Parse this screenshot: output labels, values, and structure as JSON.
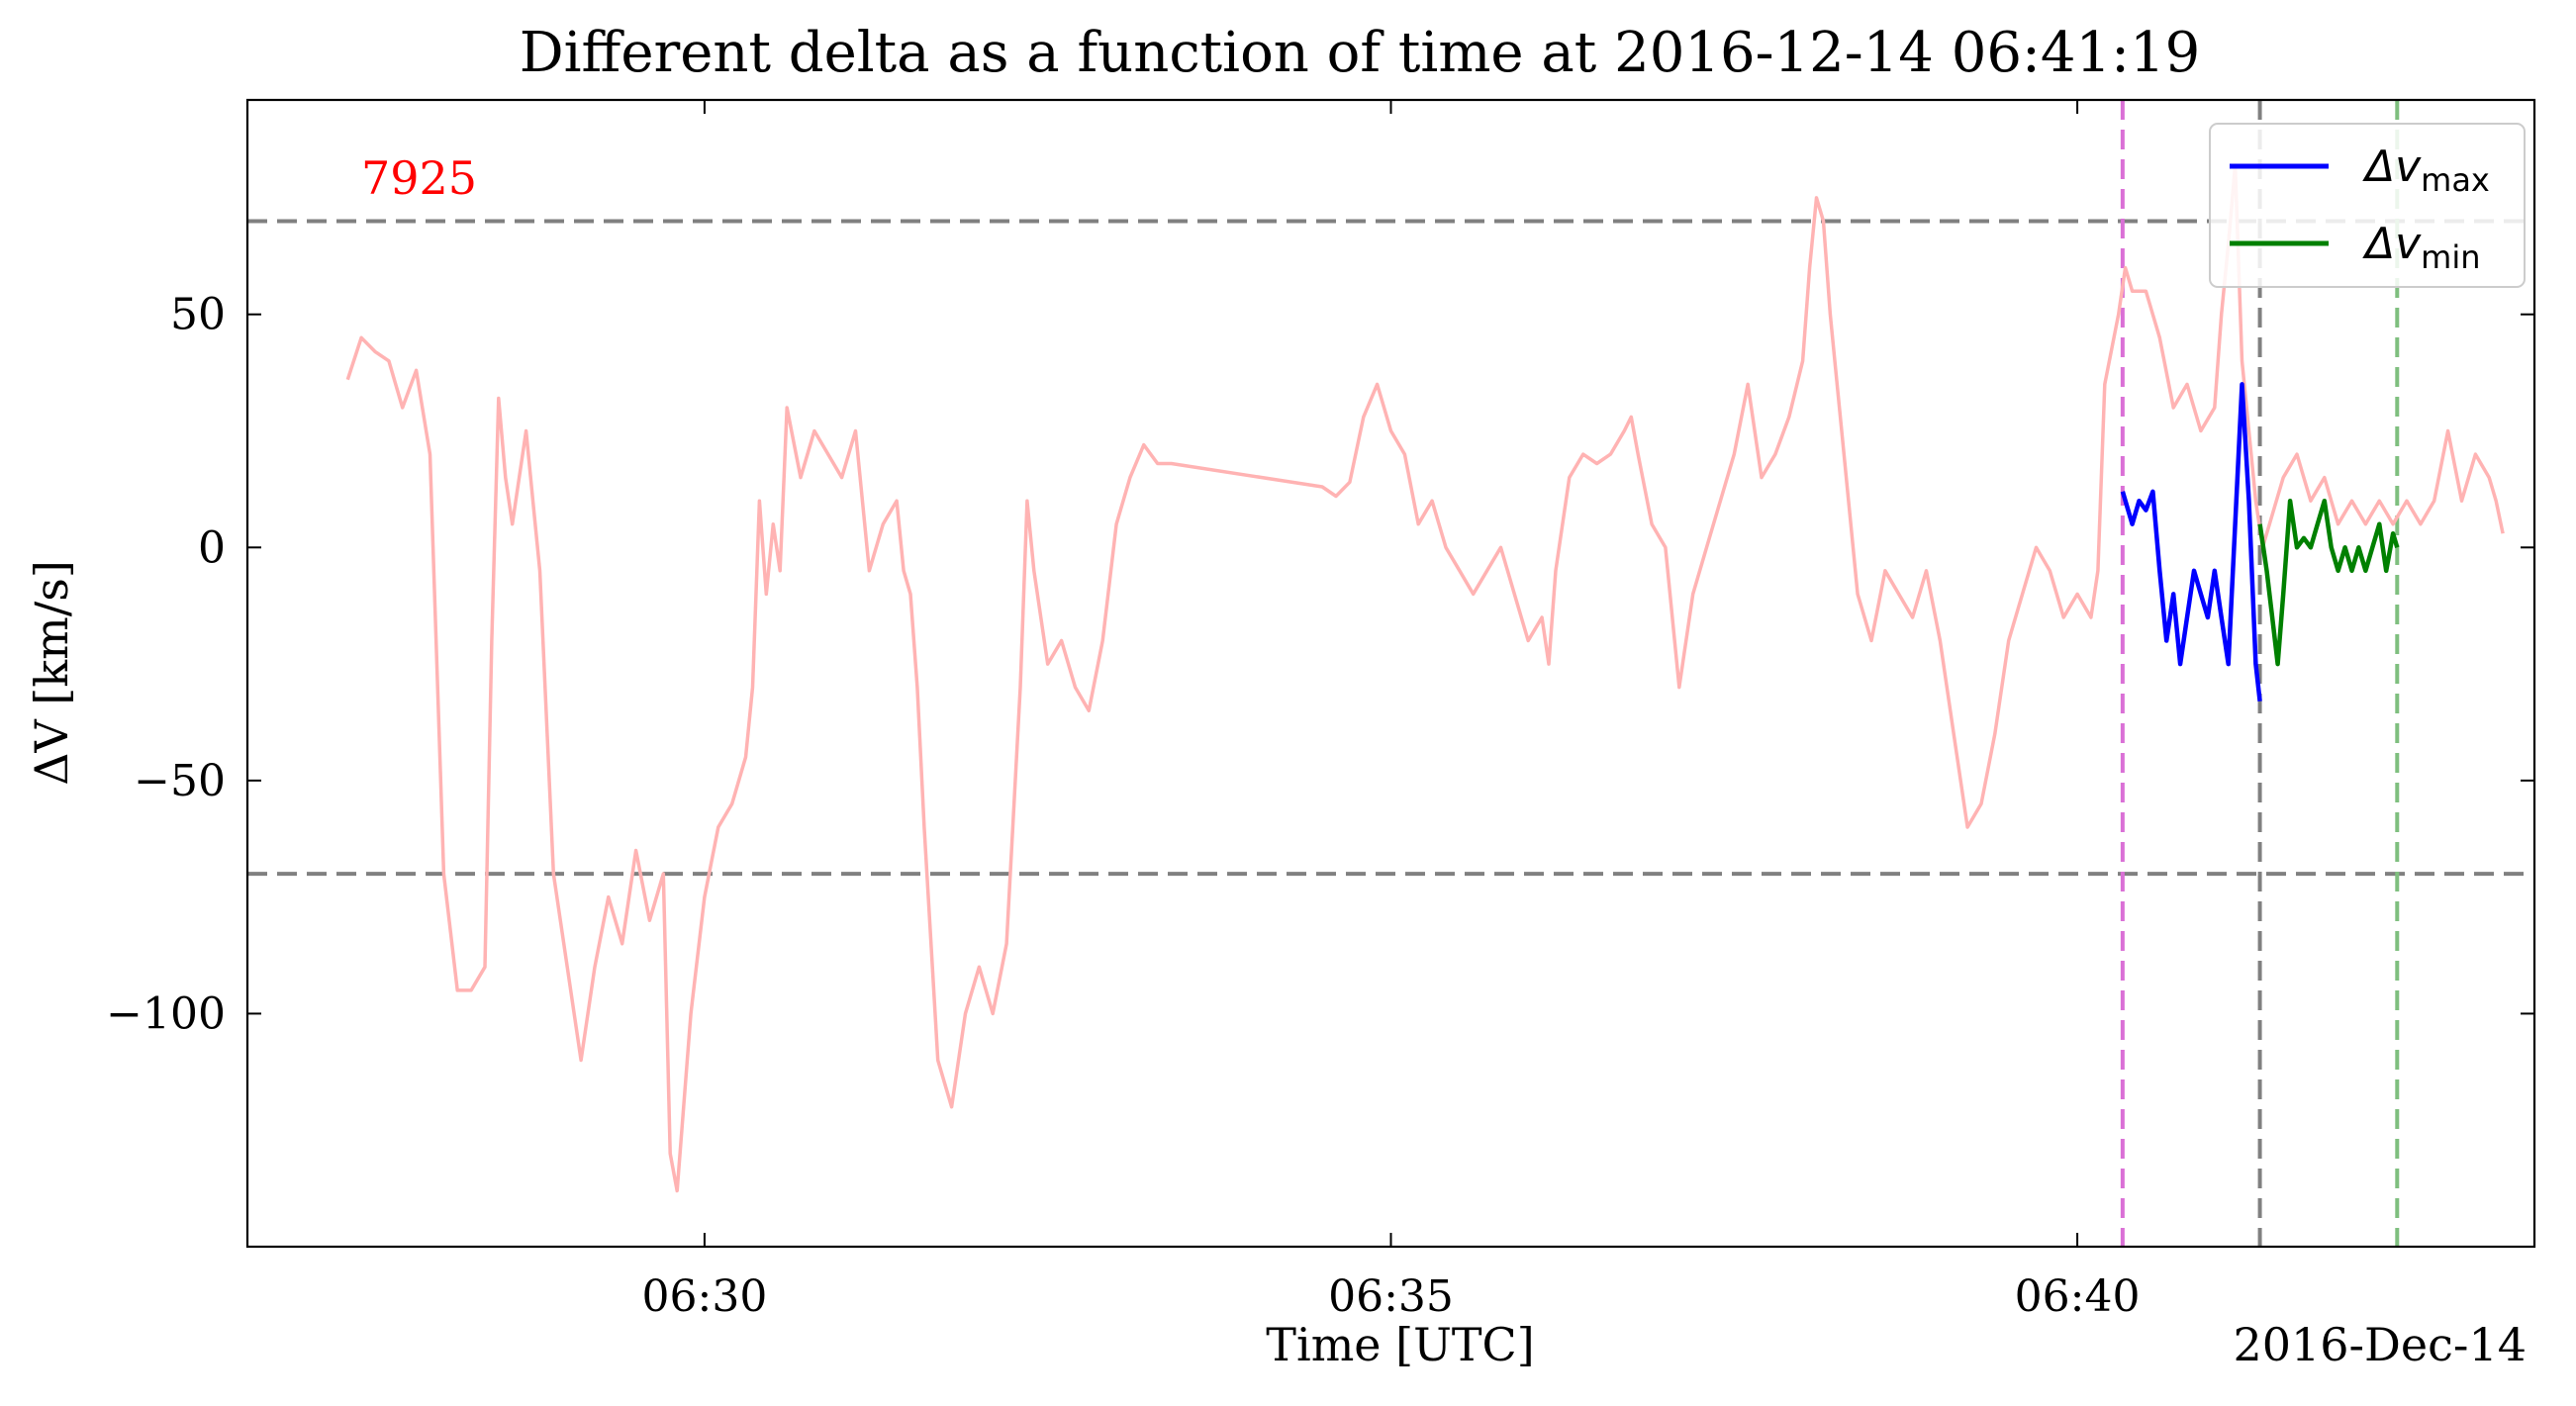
{
  "chart_data": {
    "type": "line",
    "title": "Different delta as a function of time at 2016-12-14 06:41:19",
    "xlabel": "Time [UTC]",
    "ylabel": "ΔV [km/s]",
    "date_label": "2016-Dec-14",
    "annotation": "7925",
    "x_unit": "minutes past 06:00 UTC on 2016-12-14",
    "xlim": [
      26.67,
      43.33
    ],
    "ylim": [
      -150,
      96
    ],
    "x_ticks": [
      {
        "value": 30,
        "label": "06:30"
      },
      {
        "value": 35,
        "label": "06:35"
      },
      {
        "value": 40,
        "label": "06:40"
      }
    ],
    "y_ticks": [
      {
        "value": 50,
        "label": "50"
      },
      {
        "value": 0,
        "label": "0"
      },
      {
        "value": -50,
        "label": "−50"
      },
      {
        "value": -100,
        "label": "−100"
      }
    ],
    "hlines": [
      {
        "y": 70,
        "color": "#808080",
        "style": "dashed"
      },
      {
        "y": -70,
        "color": "#808080",
        "style": "dashed"
      }
    ],
    "vlines": [
      {
        "x": 40.33,
        "color": "#da70d6",
        "style": "dashed"
      },
      {
        "x": 41.33,
        "color": "#808080",
        "style": "dashed"
      },
      {
        "x": 42.33,
        "color": "#7fbf7f",
        "style": "dashed"
      }
    ],
    "legend": {
      "placement": "upper-right",
      "entries": [
        {
          "label": "Δv",
          "sub": "max",
          "color": "#0000ff"
        },
        {
          "label": "Δv",
          "sub": "min",
          "color": "#008000"
        }
      ]
    },
    "series": [
      {
        "color": "#ffb3b3",
        "points": [
          [
            27.4,
            36
          ],
          [
            27.5,
            45
          ],
          [
            27.6,
            42
          ],
          [
            27.7,
            40
          ],
          [
            27.8,
            30
          ],
          [
            27.9,
            38
          ],
          [
            28.0,
            20
          ],
          [
            28.1,
            -70
          ],
          [
            28.2,
            -95
          ],
          [
            28.3,
            -95
          ],
          [
            28.4,
            -90
          ],
          [
            28.45,
            -20
          ],
          [
            28.5,
            32
          ],
          [
            28.55,
            15
          ],
          [
            28.6,
            5
          ],
          [
            28.7,
            25
          ],
          [
            28.75,
            10
          ],
          [
            28.8,
            -5
          ],
          [
            28.9,
            -70
          ],
          [
            29.0,
            -90
          ],
          [
            29.1,
            -110
          ],
          [
            29.2,
            -90
          ],
          [
            29.3,
            -75
          ],
          [
            29.4,
            -85
          ],
          [
            29.5,
            -65
          ],
          [
            29.6,
            -80
          ],
          [
            29.7,
            -70
          ],
          [
            29.75,
            -130
          ],
          [
            29.8,
            -138
          ],
          [
            29.9,
            -100
          ],
          [
            30.0,
            -75
          ],
          [
            30.1,
            -60
          ],
          [
            30.2,
            -55
          ],
          [
            30.3,
            -45
          ],
          [
            30.35,
            -30
          ],
          [
            30.4,
            10
          ],
          [
            30.45,
            -10
          ],
          [
            30.5,
            5
          ],
          [
            30.55,
            -5
          ],
          [
            30.6,
            30
          ],
          [
            30.7,
            15
          ],
          [
            30.8,
            25
          ],
          [
            30.9,
            20
          ],
          [
            31.0,
            15
          ],
          [
            31.1,
            25
          ],
          [
            31.2,
            -5
          ],
          [
            31.3,
            5
          ],
          [
            31.4,
            10
          ],
          [
            31.45,
            -5
          ],
          [
            31.5,
            -10
          ],
          [
            31.55,
            -30
          ],
          [
            31.6,
            -60
          ],
          [
            31.7,
            -110
          ],
          [
            31.8,
            -120
          ],
          [
            31.9,
            -100
          ],
          [
            32.0,
            -90
          ],
          [
            32.1,
            -100
          ],
          [
            32.2,
            -85
          ],
          [
            32.3,
            -30
          ],
          [
            32.35,
            10
          ],
          [
            32.4,
            -5
          ],
          [
            32.5,
            -25
          ],
          [
            32.6,
            -20
          ],
          [
            32.7,
            -30
          ],
          [
            32.8,
            -35
          ],
          [
            32.9,
            -20
          ],
          [
            33.0,
            5
          ],
          [
            33.1,
            15
          ],
          [
            33.2,
            22
          ],
          [
            33.3,
            18
          ],
          [
            33.4,
            18
          ],
          [
            34.5,
            13
          ],
          [
            34.6,
            11
          ],
          [
            34.7,
            14
          ],
          [
            34.8,
            28
          ],
          [
            34.9,
            35
          ],
          [
            35.0,
            25
          ],
          [
            35.1,
            20
          ],
          [
            35.2,
            5
          ],
          [
            35.3,
            10
          ],
          [
            35.4,
            0
          ],
          [
            35.5,
            -5
          ],
          [
            35.6,
            -10
          ],
          [
            35.7,
            -5
          ],
          [
            35.8,
            0
          ],
          [
            35.9,
            -10
          ],
          [
            36.0,
            -20
          ],
          [
            36.1,
            -15
          ],
          [
            36.15,
            -25
          ],
          [
            36.2,
            -5
          ],
          [
            36.3,
            15
          ],
          [
            36.4,
            20
          ],
          [
            36.5,
            18
          ],
          [
            36.6,
            20
          ],
          [
            36.7,
            25
          ],
          [
            36.75,
            28
          ],
          [
            36.8,
            20
          ],
          [
            36.9,
            5
          ],
          [
            37.0,
            0
          ],
          [
            37.1,
            -30
          ],
          [
            37.2,
            -10
          ],
          [
            37.3,
            0
          ],
          [
            37.4,
            10
          ],
          [
            37.5,
            20
          ],
          [
            37.6,
            35
          ],
          [
            37.7,
            15
          ],
          [
            37.8,
            20
          ],
          [
            37.9,
            28
          ],
          [
            38.0,
            40
          ],
          [
            38.05,
            60
          ],
          [
            38.1,
            75
          ],
          [
            38.15,
            70
          ],
          [
            38.2,
            50
          ],
          [
            38.3,
            20
          ],
          [
            38.4,
            -10
          ],
          [
            38.5,
            -20
          ],
          [
            38.6,
            -5
          ],
          [
            38.7,
            -10
          ],
          [
            38.8,
            -15
          ],
          [
            38.9,
            -5
          ],
          [
            39.0,
            -20
          ],
          [
            39.1,
            -40
          ],
          [
            39.2,
            -60
          ],
          [
            39.3,
            -55
          ],
          [
            39.4,
            -40
          ],
          [
            39.5,
            -20
          ],
          [
            39.6,
            -10
          ],
          [
            39.7,
            0
          ],
          [
            39.8,
            -5
          ],
          [
            39.9,
            -15
          ],
          [
            40.0,
            -10
          ],
          [
            40.1,
            -15
          ],
          [
            40.15,
            -5
          ],
          [
            40.2,
            35
          ],
          [
            40.3,
            50
          ],
          [
            40.35,
            60
          ],
          [
            40.4,
            55
          ],
          [
            40.5,
            55
          ],
          [
            40.6,
            45
          ],
          [
            40.7,
            30
          ],
          [
            40.8,
            35
          ],
          [
            40.9,
            25
          ],
          [
            41.0,
            30
          ],
          [
            41.05,
            50
          ],
          [
            41.1,
            65
          ],
          [
            41.15,
            82
          ],
          [
            41.2,
            40
          ],
          [
            41.25,
            25
          ],
          [
            41.3,
            10
          ],
          [
            41.35,
            0
          ],
          [
            41.4,
            5
          ],
          [
            41.5,
            15
          ],
          [
            41.6,
            20
          ],
          [
            41.7,
            10
          ],
          [
            41.8,
            15
          ],
          [
            41.9,
            5
          ],
          [
            42.0,
            10
          ],
          [
            42.1,
            5
          ],
          [
            42.2,
            10
          ],
          [
            42.3,
            5
          ],
          [
            42.4,
            10
          ],
          [
            42.5,
            5
          ],
          [
            42.6,
            10
          ],
          [
            42.7,
            25
          ],
          [
            42.8,
            10
          ],
          [
            42.9,
            20
          ],
          [
            43.0,
            15
          ],
          [
            43.05,
            10
          ],
          [
            43.1,
            3
          ]
        ]
      },
      {
        "name": "Δv max",
        "color": "#0000ff",
        "points": [
          [
            40.33,
            12
          ],
          [
            40.4,
            5
          ],
          [
            40.45,
            10
          ],
          [
            40.5,
            8
          ],
          [
            40.55,
            12
          ],
          [
            40.6,
            -5
          ],
          [
            40.65,
            -20
          ],
          [
            40.7,
            -10
          ],
          [
            40.75,
            -25
          ],
          [
            40.8,
            -15
          ],
          [
            40.85,
            -5
          ],
          [
            40.9,
            -10
          ],
          [
            40.95,
            -15
          ],
          [
            41.0,
            -5
          ],
          [
            41.05,
            -15
          ],
          [
            41.1,
            -25
          ],
          [
            41.15,
            5
          ],
          [
            41.2,
            35
          ],
          [
            41.25,
            10
          ],
          [
            41.3,
            -25
          ],
          [
            41.33,
            -33
          ]
        ]
      },
      {
        "name": "Δv min",
        "color": "#008000",
        "points": [
          [
            41.33,
            5
          ],
          [
            41.38,
            -5
          ],
          [
            41.42,
            -15
          ],
          [
            41.46,
            -25
          ],
          [
            41.5,
            -10
          ],
          [
            41.55,
            10
          ],
          [
            41.6,
            0
          ],
          [
            41.65,
            2
          ],
          [
            41.7,
            0
          ],
          [
            41.75,
            5
          ],
          [
            41.8,
            10
          ],
          [
            41.85,
            0
          ],
          [
            41.9,
            -5
          ],
          [
            41.95,
            0
          ],
          [
            42.0,
            -5
          ],
          [
            42.05,
            0
          ],
          [
            42.1,
            -5
          ],
          [
            42.15,
            0
          ],
          [
            42.2,
            5
          ],
          [
            42.25,
            -5
          ],
          [
            42.3,
            3
          ],
          [
            42.33,
            0
          ]
        ]
      }
    ]
  }
}
